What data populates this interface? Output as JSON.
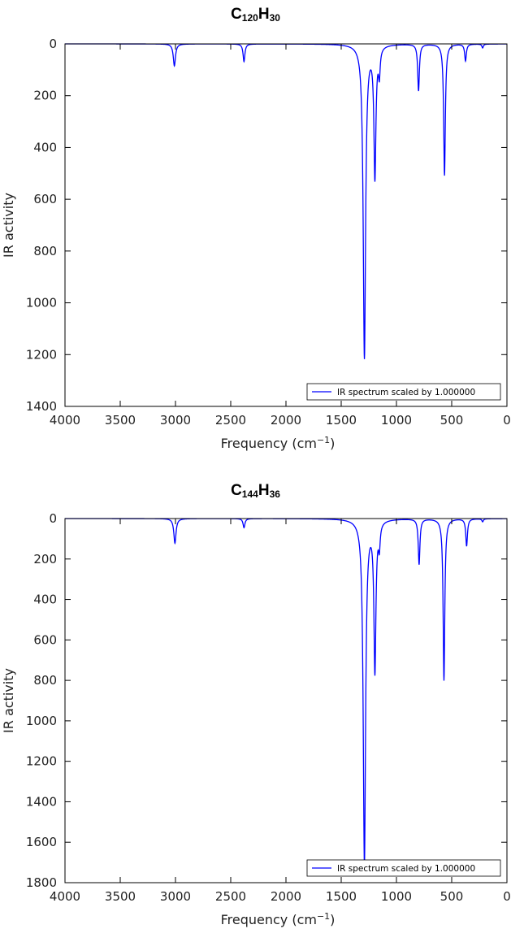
{
  "chart_data": [
    {
      "type": "line",
      "title": {
        "C": "C",
        "c_sub": "120",
        "H": "H",
        "h_sub": "30"
      },
      "xlabel": "Frequency (cm",
      "xlabel_sup": "−1",
      "xlabel_close": ")",
      "ylabel": "IR activity",
      "xlim": [
        4000,
        0
      ],
      "ylim": [
        0,
        1400
      ],
      "y_inverted": true,
      "xticks": [
        "4000",
        "3500",
        "3000",
        "2500",
        "2000",
        "1500",
        "1000",
        "500",
        "0"
      ],
      "yticks": [
        "0",
        "200",
        "400",
        "600",
        "800",
        "1000",
        "1200",
        "1400"
      ],
      "legend": {
        "label": "IR spectrum scaled by 1.000000",
        "placement": "lower-right"
      },
      "series": [
        {
          "name": "IR spectrum scaled by 1.000000",
          "color": "#0000ff",
          "peaks": [
            {
              "x": 3010,
              "y": 85,
              "w": 12
            },
            {
              "x": 2380,
              "y": 68,
              "w": 10
            },
            {
              "x": 1290,
              "y": 1210,
              "w": 13
            },
            {
              "x": 1195,
              "y": 505,
              "w": 11
            },
            {
              "x": 1155,
              "y": 100,
              "w": 9
            },
            {
              "x": 800,
              "y": 180,
              "w": 9
            },
            {
              "x": 565,
              "y": 508,
              "w": 9
            },
            {
              "x": 375,
              "y": 65,
              "w": 9
            },
            {
              "x": 220,
              "y": 15,
              "w": 8
            }
          ]
        }
      ]
    },
    {
      "type": "line",
      "title": {
        "C": "C",
        "c_sub": "144",
        "H": "H",
        "h_sub": "36"
      },
      "xlabel": "Frequency (cm",
      "xlabel_sup": "−1",
      "xlabel_close": ")",
      "ylabel": "IR activity",
      "xlim": [
        4000,
        0
      ],
      "ylim": [
        0,
        1800
      ],
      "y_inverted": true,
      "xticks": [
        "4000",
        "3500",
        "3000",
        "2500",
        "2000",
        "1500",
        "1000",
        "500",
        "0"
      ],
      "yticks": [
        "0",
        "200",
        "400",
        "600",
        "800",
        "1000",
        "1200",
        "1400",
        "1600",
        "1800"
      ],
      "legend": {
        "label": "IR spectrum scaled by 1.000000",
        "placement": "lower-right"
      },
      "series": [
        {
          "name": "IR spectrum scaled by 1.000000",
          "color": "#0000ff",
          "peaks": [
            {
              "x": 3005,
              "y": 122,
              "w": 12
            },
            {
              "x": 2380,
              "y": 45,
              "w": 10
            },
            {
              "x": 1290,
              "y": 1700,
              "w": 13
            },
            {
              "x": 1195,
              "y": 740,
              "w": 11
            },
            {
              "x": 1155,
              "y": 110,
              "w": 9
            },
            {
              "x": 795,
              "y": 225,
              "w": 9
            },
            {
              "x": 570,
              "y": 800,
              "w": 9
            },
            {
              "x": 365,
              "y": 135,
              "w": 9
            },
            {
              "x": 220,
              "y": 15,
              "w": 8
            }
          ]
        }
      ]
    }
  ]
}
